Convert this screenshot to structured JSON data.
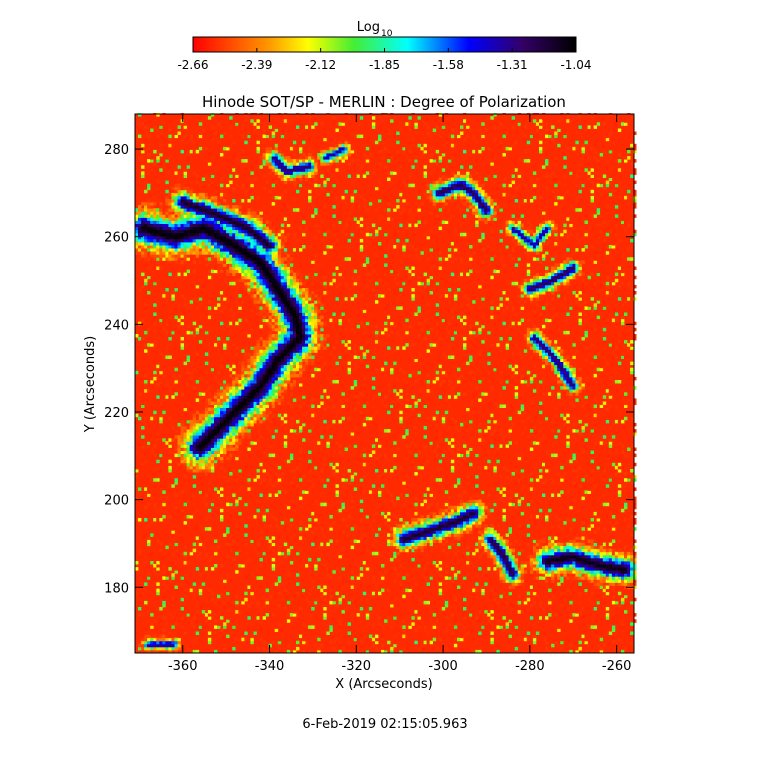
{
  "chart_data": {
    "type": "heatmap",
    "title": "Hinode SOT/SP - MERLIN : Degree of Polarization",
    "xlabel": "X (Arcseconds)",
    "ylabel": "Y (Arcseconds)",
    "footer": "6-Feb-2019 02:15:05.963",
    "xlim": [
      -371,
      -256
    ],
    "ylim": [
      165,
      288
    ],
    "x_ticks": [
      -360,
      -340,
      -320,
      -300,
      -280,
      -260
    ],
    "y_ticks": [
      180,
      200,
      220,
      240,
      260,
      280
    ],
    "colorbar": {
      "label_main": "Log",
      "label_sub": "10",
      "min": -2.66,
      "max": -1.04,
      "ticks": [
        "-2.66",
        "-2.39",
        "-2.12",
        "-1.85",
        "-1.58",
        "-1.31",
        "-1.04"
      ],
      "colormap": "rainbow-red-to-black"
    },
    "background_level": -2.62,
    "strong_regions": [
      {
        "name": "main-network-lane",
        "points": [
          [
            -369,
            262
          ],
          [
            -362,
            260
          ],
          [
            -355,
            262
          ],
          [
            -348,
            258
          ],
          [
            -342,
            254
          ],
          [
            -338,
            248
          ],
          [
            -334,
            242
          ],
          [
            -333,
            237
          ],
          [
            -338,
            232
          ],
          [
            -342,
            226
          ],
          [
            -347,
            221
          ],
          [
            -352,
            216
          ],
          [
            -356,
            212
          ]
        ],
        "width": 3.2,
        "peak": -1.05
      },
      {
        "name": "upper-left-branch",
        "points": [
          [
            -360,
            268
          ],
          [
            -352,
            265
          ],
          [
            -345,
            262
          ],
          [
            -340,
            258
          ]
        ],
        "width": 2.0,
        "peak": -1.12
      },
      {
        "name": "lower-right-cluster",
        "points": [
          [
            -276,
            186
          ],
          [
            -270,
            187
          ],
          [
            -264,
            185
          ],
          [
            -258,
            184
          ]
        ],
        "width": 2.4,
        "peak": -1.08
      },
      {
        "name": "lower-middle-cluster",
        "points": [
          [
            -309,
            191
          ],
          [
            -303,
            193
          ],
          [
            -297,
            195
          ],
          [
            -293,
            197
          ]
        ],
        "width": 1.9,
        "peak": -1.14
      },
      {
        "name": "small-cluster-288",
        "points": [
          [
            -289,
            191
          ],
          [
            -286,
            187
          ],
          [
            -284,
            183
          ]
        ],
        "width": 1.6,
        "peak": -1.18
      },
      {
        "name": "right-upper-hook",
        "points": [
          [
            -280,
            248
          ],
          [
            -275,
            250
          ],
          [
            -270,
            253
          ]
        ],
        "width": 1.4,
        "peak": -1.22
      },
      {
        "name": "right-middle-lane",
        "points": [
          [
            -279,
            237
          ],
          [
            -274,
            232
          ],
          [
            -270,
            226
          ]
        ],
        "width": 1.3,
        "peak": -1.25
      },
      {
        "name": "top-center-patch",
        "points": [
          [
            -301,
            270
          ],
          [
            -296,
            272
          ],
          [
            -293,
            270
          ],
          [
            -290,
            266
          ]
        ],
        "width": 1.5,
        "peak": -1.2
      },
      {
        "name": "top-left-patch",
        "points": [
          [
            -339,
            278
          ],
          [
            -336,
            275
          ],
          [
            -331,
            276
          ]
        ],
        "width": 1.4,
        "peak": -1.26
      },
      {
        "name": "upper-center-dash",
        "points": [
          [
            -327,
            278
          ],
          [
            -323,
            280
          ]
        ],
        "width": 1.1,
        "peak": -1.35
      },
      {
        "name": "right-mid-dash",
        "points": [
          [
            -284,
            262
          ],
          [
            -279,
            258
          ],
          [
            -276,
            262
          ]
        ],
        "width": 1.1,
        "peak": -1.32
      },
      {
        "name": "bottom-left-dots",
        "points": [
          [
            -368,
            167
          ],
          [
            -362,
            167
          ]
        ],
        "width": 1.0,
        "peak": -1.3
      }
    ]
  }
}
